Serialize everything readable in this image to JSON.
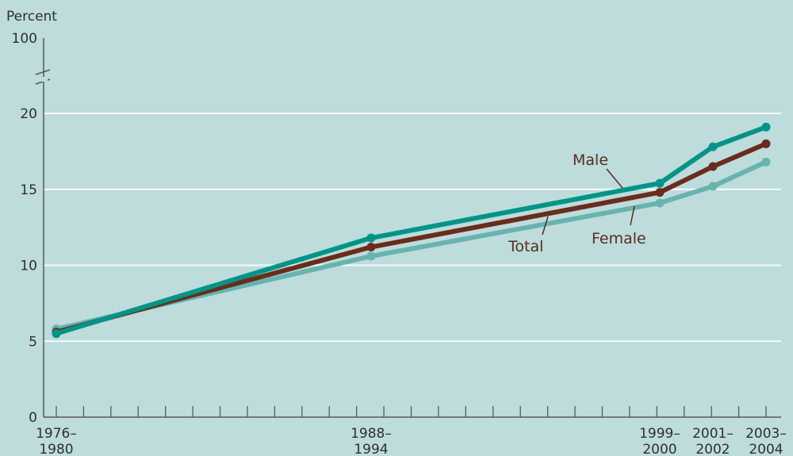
{
  "chart_data": {
    "type": "line",
    "ylabel": "Percent",
    "xlabel": "",
    "title": "",
    "x": [
      "1976–1980",
      "1988–1994",
      "1999–2000",
      "2001–2002",
      "2003–2004"
    ],
    "x_tick_labels": [
      [
        "1976–",
        "1980"
      ],
      [
        "1988–",
        "1994"
      ],
      [
        "1999–",
        "2000"
      ],
      [
        "2001–",
        "2002"
      ],
      [
        "2003–",
        "2004"
      ]
    ],
    "y_ticks": [
      0,
      5,
      10,
      15,
      20,
      100
    ],
    "y_tick_labels": [
      "0",
      "5",
      "10",
      "15",
      "20",
      "100"
    ],
    "ylim": [
      0,
      20
    ],
    "y_axis_break": true,
    "y_break_top_value": 100,
    "grid": true,
    "series": [
      {
        "name": "Male",
        "values": [
          5.5,
          11.8,
          15.4,
          17.8,
          19.1
        ],
        "color": "#009487"
      },
      {
        "name": "Total",
        "values": [
          5.6,
          11.2,
          14.8,
          16.5,
          18.0
        ],
        "color": "#6a2c1c"
      },
      {
        "name": "Female",
        "values": [
          5.8,
          10.6,
          14.1,
          15.2,
          16.8
        ],
        "color": "#67b3b0"
      }
    ],
    "colors": {
      "background": "#bddcdb",
      "grid": "#f4fbfb",
      "axis": "#5a5a5a",
      "label_text": "#5a2d1f"
    }
  }
}
